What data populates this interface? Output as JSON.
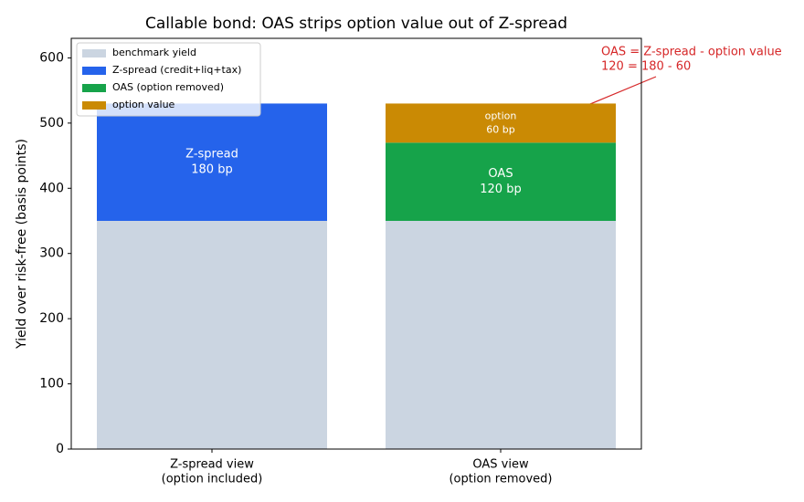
{
  "chart_data": {
    "type": "stacked_bar",
    "title": "Callable bond: OAS strips option value out of Z-spread",
    "y_label": "Yield over risk-free (basis points)",
    "categories": [
      [
        "Z-spread view",
        "(option included)"
      ],
      [
        "OAS view",
        "(option removed)"
      ]
    ],
    "series": [
      {
        "name": "benchmark yield",
        "color": "#cbd5e1",
        "values": [
          350,
          350
        ]
      },
      {
        "name": "Z-spread (credit+liq+tax)",
        "color": "#2563eb",
        "values": [
          180,
          null
        ],
        "value_labels": [
          [
            "Z-spread",
            "180 bp"
          ],
          null
        ]
      },
      {
        "name": "OAS (option removed)",
        "color": "#16a34a",
        "values": [
          null,
          120
        ],
        "value_labels": [
          null,
          [
            "OAS",
            "120 bp"
          ]
        ]
      },
      {
        "name": "option value",
        "color": "#ca8a04",
        "values": [
          null,
          60
        ],
        "value_labels": [
          null,
          [
            "option",
            "60 bp"
          ]
        ]
      }
    ],
    "annotation": [
      "OAS = Z-spread - option value",
      "120 = 180 - 60"
    ],
    "ylim": [
      0,
      630
    ],
    "yticks": [
      0,
      100,
      200,
      300,
      400,
      500,
      600
    ],
    "grid": false,
    "legend": "upper-left"
  }
}
